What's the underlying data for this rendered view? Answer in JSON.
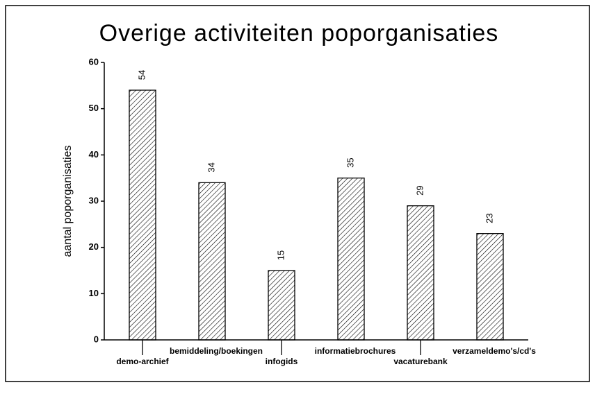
{
  "chart_data": {
    "type": "bar",
    "title": "Overige activiteiten poporganisaties",
    "ylabel": "aantal poporganisaties",
    "categories": [
      "demo-archief",
      "bemiddeling/boekingen",
      "infogids",
      "informatiebrochures",
      "vacaturebank",
      "verzameldemo's/cd's"
    ],
    "values": [
      54,
      34,
      15,
      35,
      29,
      23
    ],
    "color": "#000000",
    "ylim": [
      0,
      60
    ],
    "yticks": [
      0,
      10,
      20,
      30,
      40,
      50,
      60
    ],
    "grid": false
  }
}
